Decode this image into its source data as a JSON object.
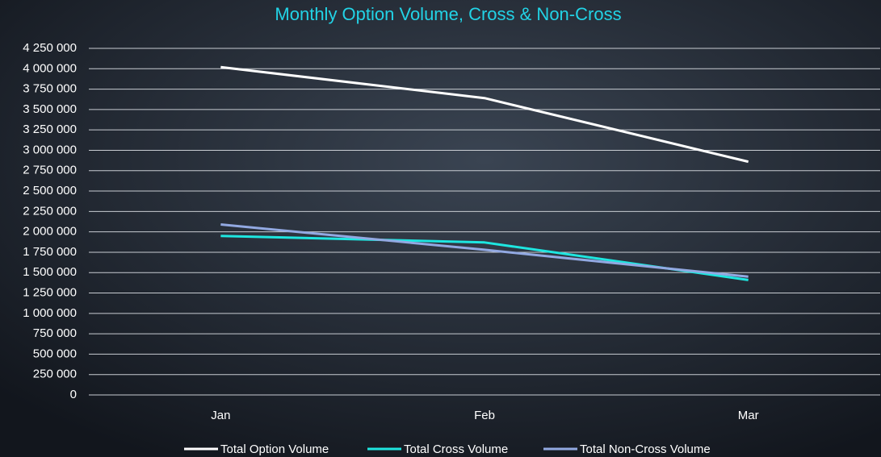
{
  "chart_data": {
    "type": "line",
    "title": "Monthly Option Volume, Cross & Non-Cross",
    "categories": [
      "Jan",
      "Feb",
      "Mar"
    ],
    "series": [
      {
        "name": "Total Option Volume",
        "color": "#ffffff",
        "values": [
          4020000,
          3640000,
          2860000
        ]
      },
      {
        "name": "Total Cross Volume",
        "color": "#1ee6e0",
        "values": [
          1950000,
          1870000,
          1410000
        ]
      },
      {
        "name": "Total Non-Cross Volume",
        "color": "#92a9e2",
        "values": [
          2090000,
          1780000,
          1450000
        ]
      }
    ],
    "ylim": [
      0,
      4250000
    ],
    "yticks": [
      0,
      {
        "value": 250000,
        "label": "250 000"
      },
      {
        "value": 500000,
        "label": "500 000"
      },
      {
        "value": 750000,
        "label": "750 000"
      },
      {
        "value": 1000000,
        "label": "1 000 000"
      },
      {
        "value": 1250000,
        "label": "1 250 000"
      },
      {
        "value": 1500000,
        "label": "1 500 000"
      },
      {
        "value": 1750000,
        "label": "1 750 000"
      },
      {
        "value": 2000000,
        "label": "2 000 000"
      },
      {
        "value": 2250000,
        "label": "2 250 000"
      },
      {
        "value": 2500000,
        "label": "2 500 000"
      },
      {
        "value": 2750000,
        "label": "2 750 000"
      },
      {
        "value": 3000000,
        "label": "3 000 000"
      },
      {
        "value": 3250000,
        "label": "3 250 000"
      },
      {
        "value": 3500000,
        "label": "3 500 000"
      },
      {
        "value": 3750000,
        "label": "3 750 000"
      },
      {
        "value": 4000000,
        "label": "4 000 000"
      },
      {
        "value": 4250000,
        "label": "4 250 000"
      }
    ],
    "grid": true,
    "legend": "bottom",
    "title_color": "#22d3e6"
  }
}
